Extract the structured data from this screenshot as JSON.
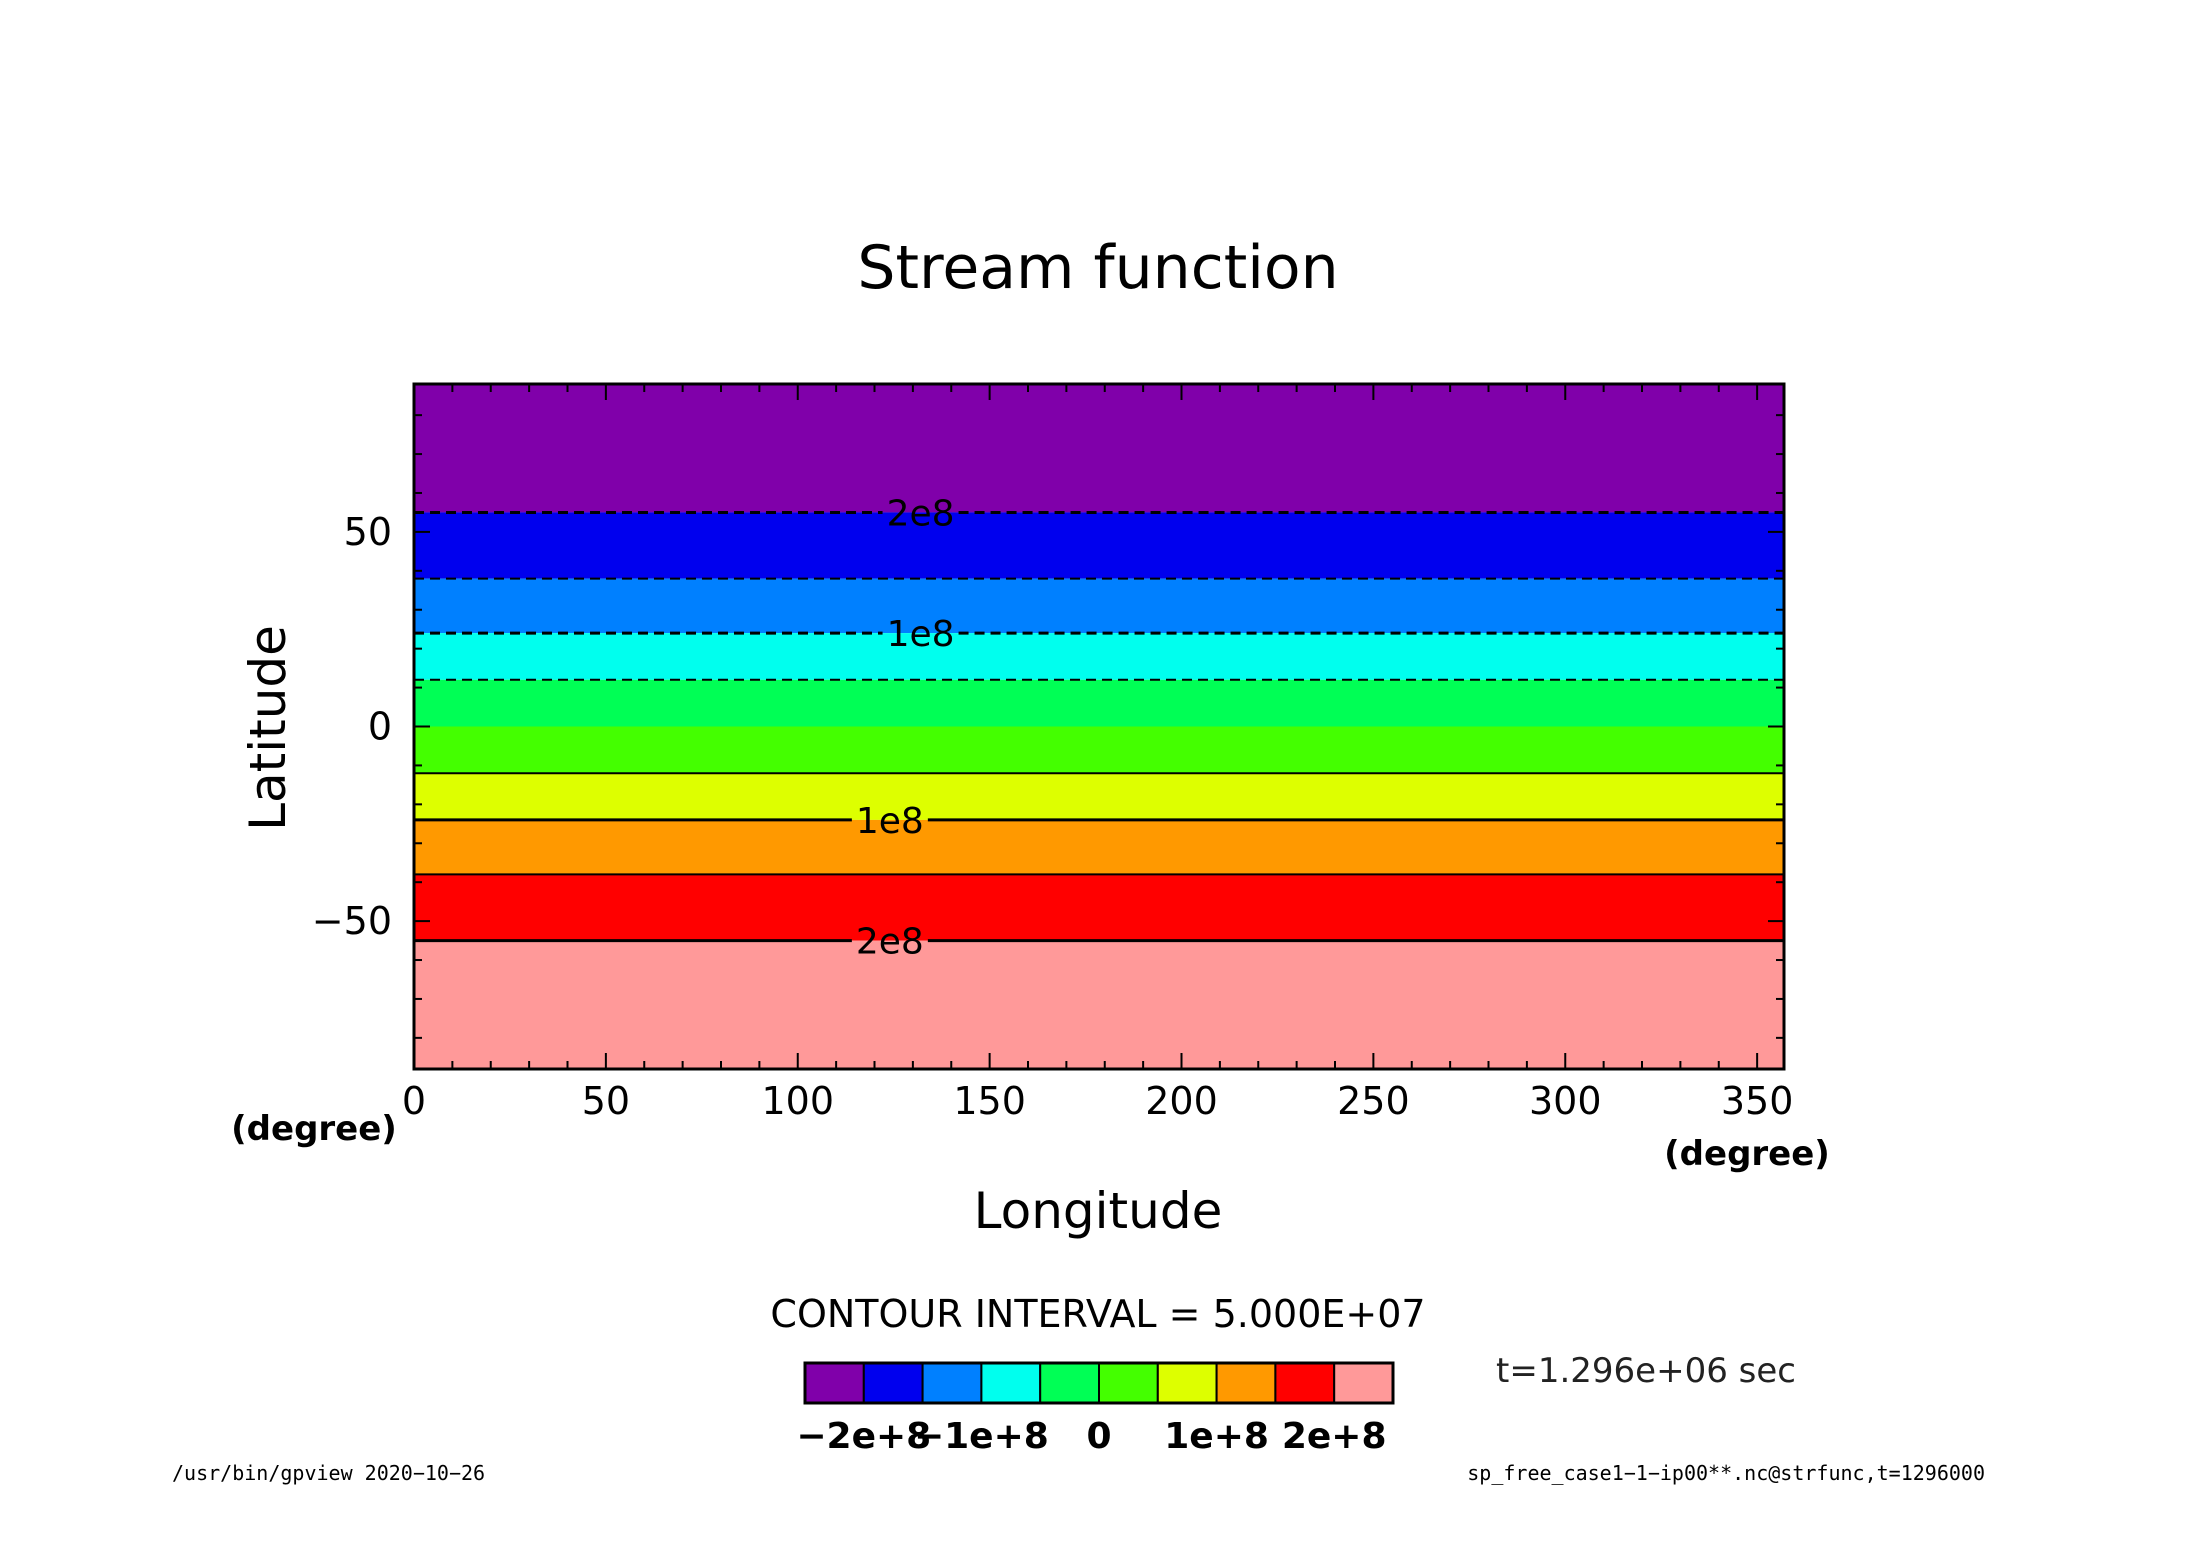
{
  "chart_data": {
    "type": "heatmap",
    "title": "Stream function",
    "xlabel": "Longitude",
    "ylabel": "Latitude",
    "x_unit": "(degree)",
    "y_unit": "(degree)",
    "xlim": [
      0,
      357
    ],
    "ylim": [
      -88,
      88
    ],
    "x_ticks": [
      0,
      50,
      100,
      150,
      200,
      250,
      300,
      350
    ],
    "y_ticks": [
      50,
      0,
      -50
    ],
    "x_tick_labels": [
      "0",
      "50",
      "100",
      "150",
      "200",
      "250",
      "300",
      "350"
    ],
    "y_tick_labels": [
      "50",
      "0",
      "−50"
    ],
    "bands": [
      {
        "lat_from": 55,
        "lat_to": 88,
        "color": "#8000aa"
      },
      {
        "lat_from": 38,
        "lat_to": 55,
        "color": "#0000ee"
      },
      {
        "lat_from": 24,
        "lat_to": 38,
        "color": "#0080ff"
      },
      {
        "lat_from": 12,
        "lat_to": 24,
        "color": "#00ffee"
      },
      {
        "lat_from": 0,
        "lat_to": 12,
        "color": "#00ff55"
      },
      {
        "lat_from": -12,
        "lat_to": 0,
        "color": "#44ff00"
      },
      {
        "lat_from": -24,
        "lat_to": -12,
        "color": "#ddff00"
      },
      {
        "lat_from": -38,
        "lat_to": -24,
        "color": "#ff9900"
      },
      {
        "lat_from": -55,
        "lat_to": -38,
        "color": "#ff0000"
      },
      {
        "lat_from": -88,
        "lat_to": -55,
        "color": "#ff9999"
      }
    ],
    "contours": [
      {
        "lat": 55,
        "style": "dashed",
        "width": 3,
        "label": "2e8",
        "label_lon": 132
      },
      {
        "lat": 38,
        "style": "dashed",
        "width": 2,
        "label": "",
        "label_lon": 0
      },
      {
        "lat": 24,
        "style": "dashed",
        "width": 3,
        "label": "1e8",
        "label_lon": 132
      },
      {
        "lat": 12,
        "style": "dashed",
        "width": 2,
        "label": "",
        "label_lon": 0
      },
      {
        "lat": -12,
        "style": "solid",
        "width": 2,
        "label": "",
        "label_lon": 0
      },
      {
        "lat": -24,
        "style": "solid",
        "width": 3,
        "label": "1e8",
        "label_lon": 124
      },
      {
        "lat": -38,
        "style": "solid",
        "width": 2,
        "label": "",
        "label_lon": 0
      },
      {
        "lat": -55,
        "style": "solid",
        "width": 3,
        "label": "2e8",
        "label_lon": 124
      }
    ],
    "contour_interval_text": "CONTOUR INTERVAL = 5.000E+07",
    "colorbar": {
      "colors": [
        "#8000aa",
        "#0000ee",
        "#0080ff",
        "#00ffee",
        "#00ff55",
        "#44ff00",
        "#ddff00",
        "#ff9900",
        "#ff0000",
        "#ff9999"
      ],
      "labels": [
        {
          "text": "−2e+8",
          "pos": 1
        },
        {
          "text": "−1e+8",
          "pos": 3
        },
        {
          "text": "0",
          "pos": 5
        },
        {
          "text": "1e+8",
          "pos": 7
        },
        {
          "text": "2e+8",
          "pos": 9
        }
      ]
    },
    "time_text": "t=1.296e+06 sec",
    "footer_left": "/usr/bin/gpview   2020−10−26",
    "footer_right": "sp_free_case1−1−ip00**.nc@strfunc,t=1296000"
  }
}
